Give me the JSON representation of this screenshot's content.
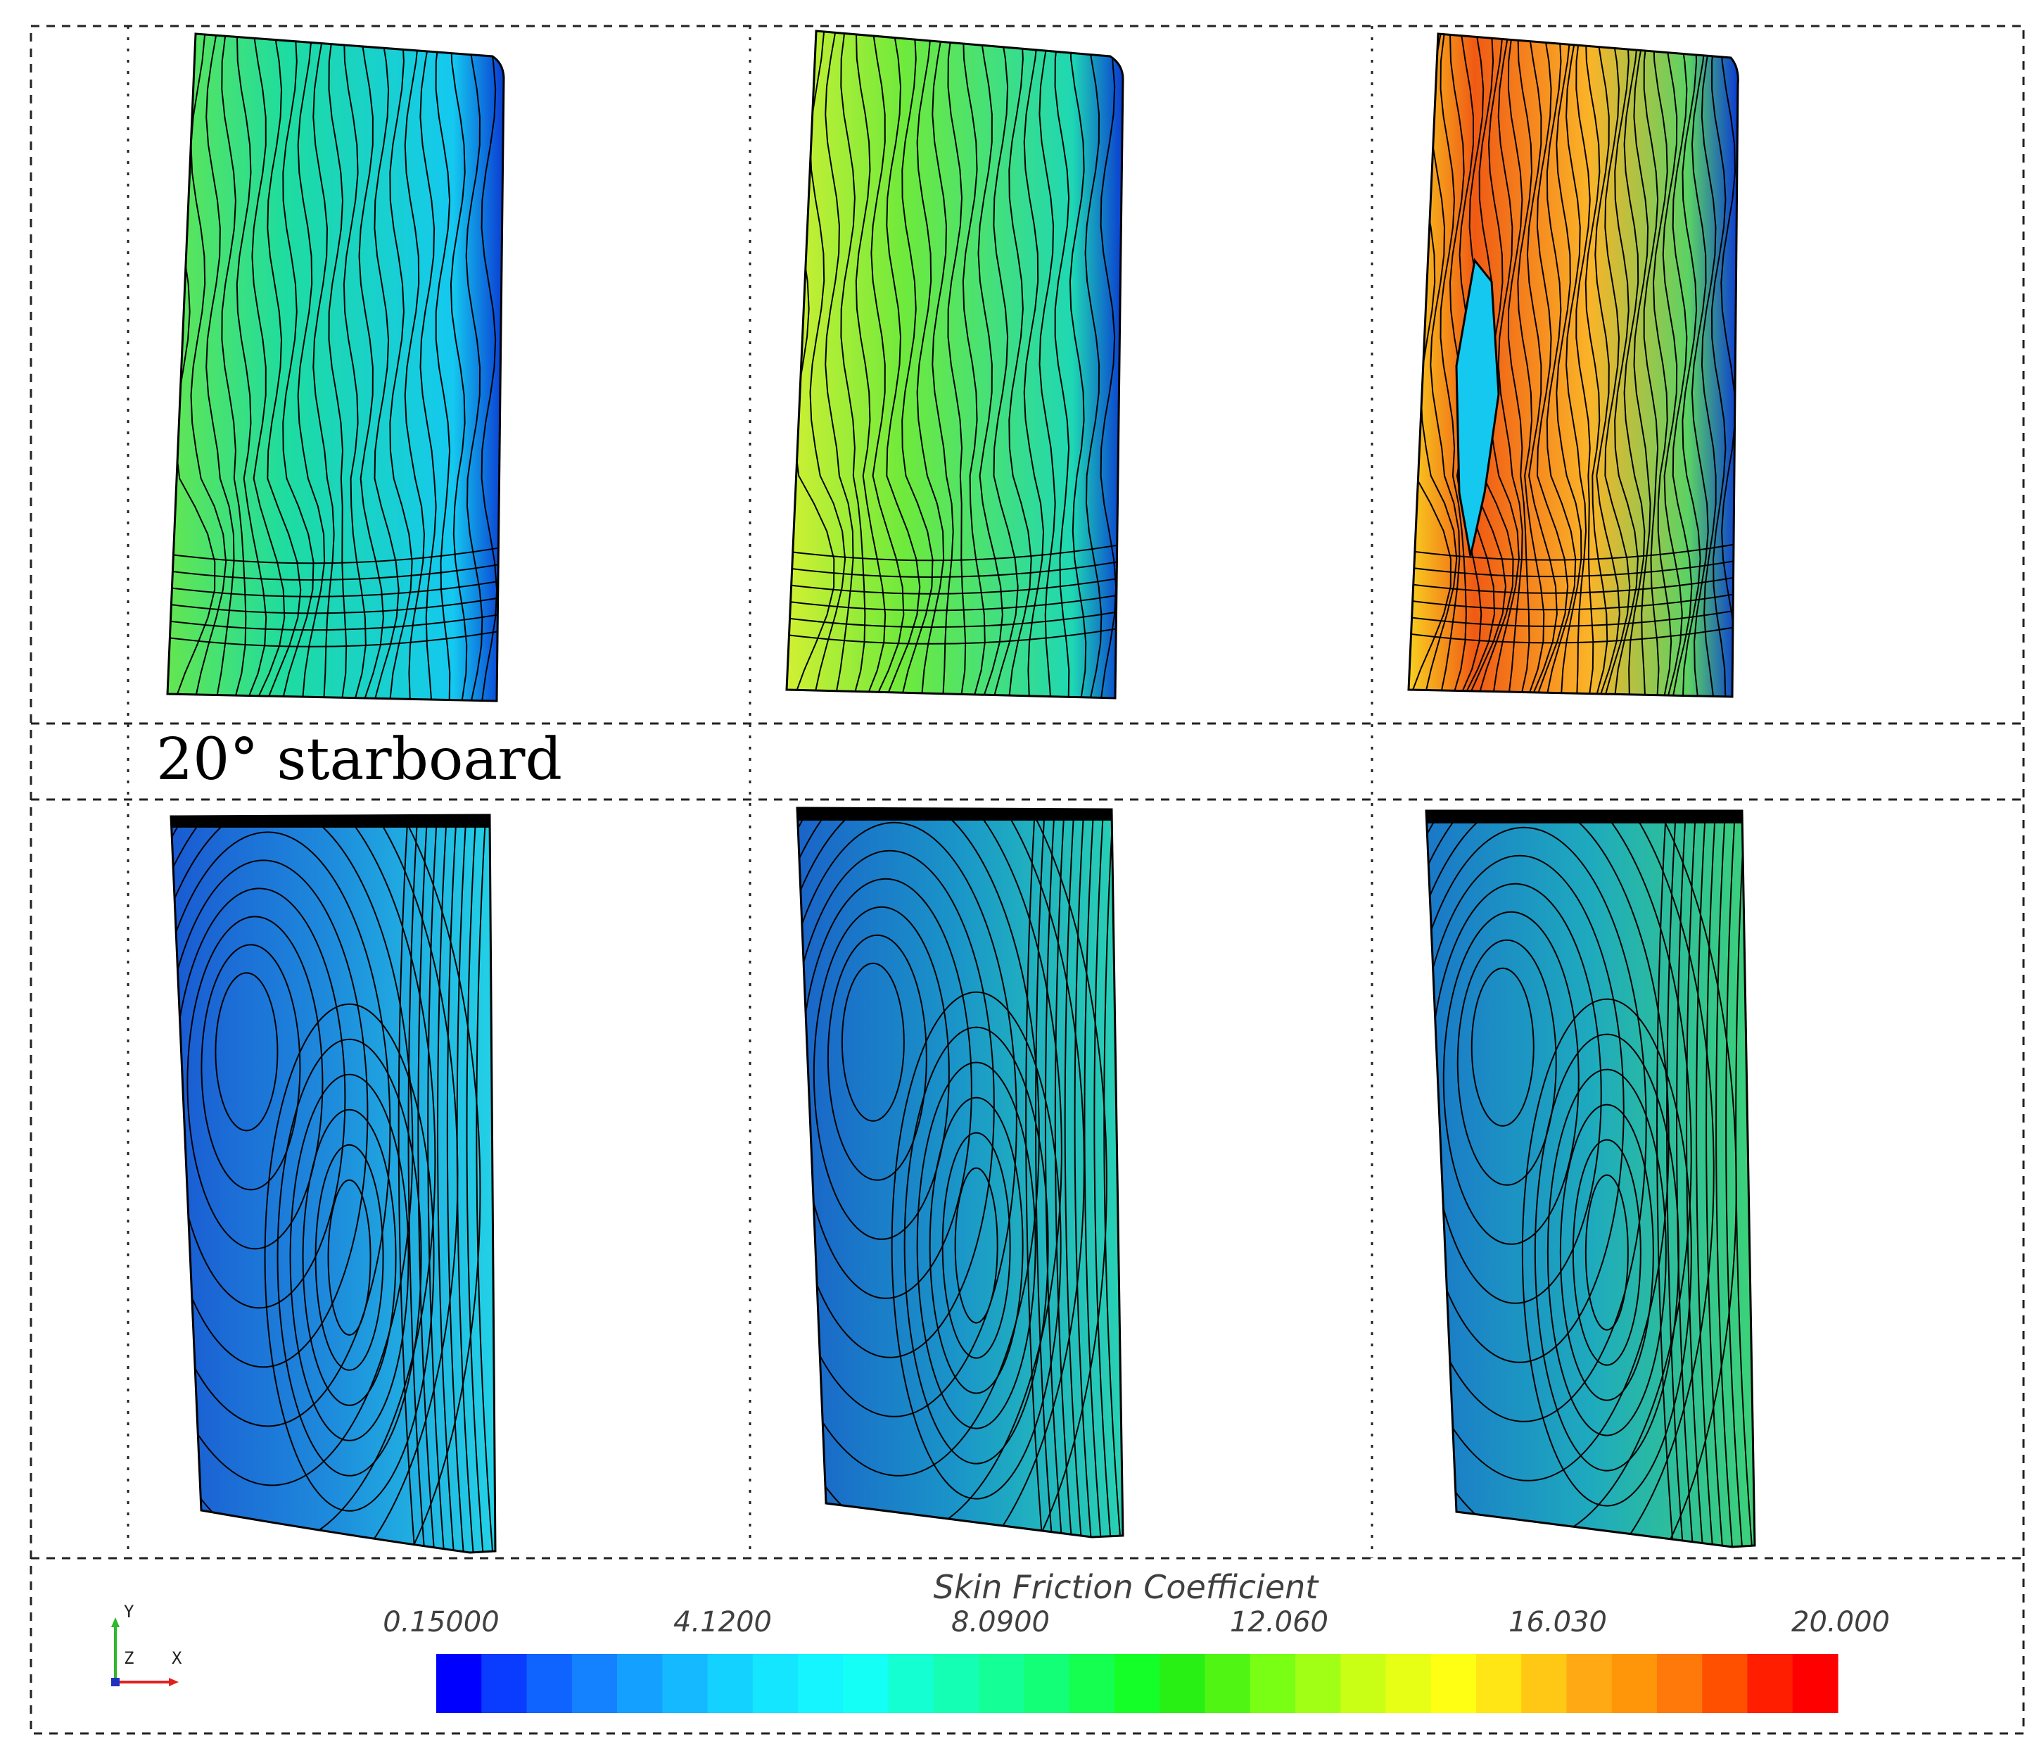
{
  "row_label": "20° starboard",
  "colorbar": {
    "title": "Skin Friction Coefficient",
    "ticks": [
      "0.15000",
      "4.1200",
      "8.0900",
      "12.060",
      "16.030",
      "20.000"
    ],
    "range": [
      0.15,
      20.0
    ],
    "colors": [
      "#0000ff",
      "#0a3cff",
      "#0f64ff",
      "#1482ff",
      "#14a0ff",
      "#14b9ff",
      "#14d2ff",
      "#14e6ff",
      "#14f5ff",
      "#14fff5",
      "#14ffd2",
      "#14ffb4",
      "#14ff96",
      "#14ff78",
      "#14ff50",
      "#14ff28",
      "#28f014",
      "#50f514",
      "#78ff14",
      "#a0ff14",
      "#c8ff14",
      "#e6ff14",
      "#ffff14",
      "#ffe614",
      "#ffc814",
      "#ffaa14",
      "#ff960a",
      "#ff780a",
      "#ff5000",
      "#ff1e00",
      "#ff0000"
    ]
  },
  "axis_triad": {
    "y": "Y",
    "z": "Z",
    "x": "X"
  },
  "panels": {
    "top": [
      {
        "name": "top-left",
        "low": "#14d7f0",
        "mid": "#1edca0",
        "high": "#64e650",
        "edge": "#0a3cd2"
      },
      {
        "name": "top-mid",
        "low": "#1ed7b4",
        "mid": "#6eea3c",
        "high": "#d2f032",
        "edge": "#0a3cd2"
      },
      {
        "name": "top-right",
        "low": "#5ad264",
        "mid": "#fab428",
        "high": "#f05a14",
        "edge": "#0a3cd2"
      }
    ],
    "bottom": [
      {
        "name": "bottom-left",
        "low": "#1a5ad2",
        "mid": "#1e8cdc",
        "high": "#22c8e6",
        "edge": "#1040c8"
      },
      {
        "name": "bottom-mid",
        "low": "#1a64c8",
        "mid": "#1a96c8",
        "high": "#28c8b4",
        "edge": "#1040c8"
      },
      {
        "name": "bottom-right",
        "low": "#1a78c8",
        "mid": "#1eaabe",
        "high": "#3cd278",
        "edge": "#1040c8"
      }
    ]
  }
}
